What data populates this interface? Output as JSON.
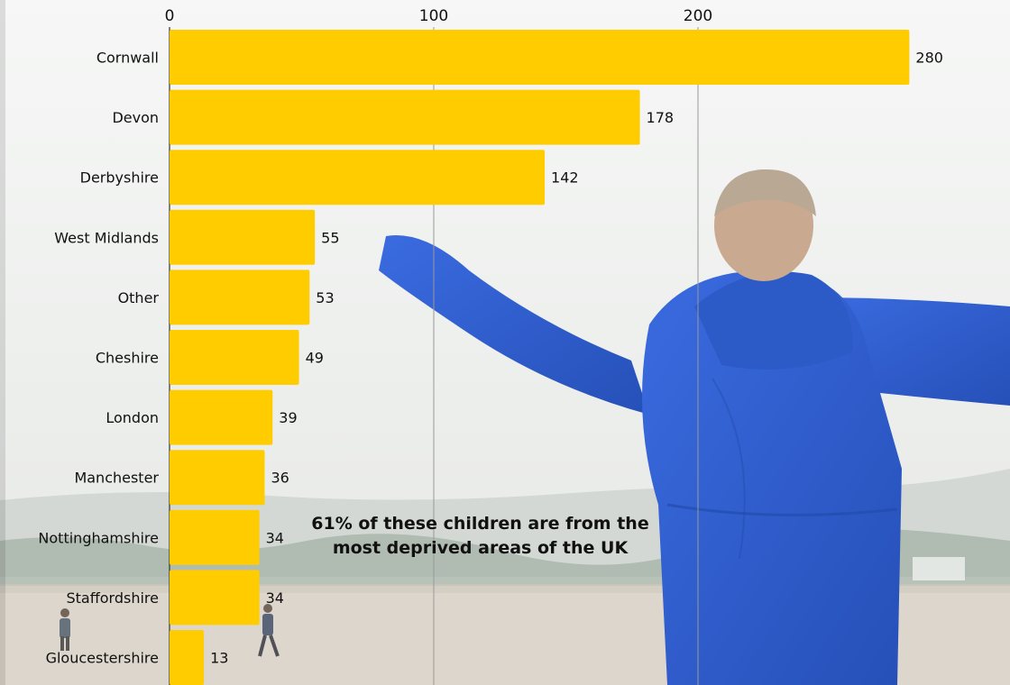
{
  "chart_data": {
    "type": "bar",
    "orientation": "horizontal",
    "categories": [
      "Cornwall",
      "Devon",
      "Derbyshire",
      "West Midlands",
      "Other",
      "Cheshire",
      "London",
      "Manchester",
      "Nottinghamshire",
      "Staffordshire",
      "Gloucestershire"
    ],
    "values": [
      280,
      178,
      142,
      55,
      53,
      49,
      39,
      36,
      34,
      34,
      13
    ],
    "x_ticks": [
      "0",
      "100",
      "200"
    ],
    "xlim": [
      0,
      280
    ],
    "grid": true,
    "axis_position": "top",
    "bar_color": "#ffcc00",
    "annotation": "61% of these children are from the most deprived areas of the UK"
  },
  "background": {
    "description_icon": "boy-in-blue-raincoat-photo",
    "sky_color": "#eef0ee",
    "jacket_color": "#2f5fd0",
    "sand_color": "#ddd6cc"
  }
}
